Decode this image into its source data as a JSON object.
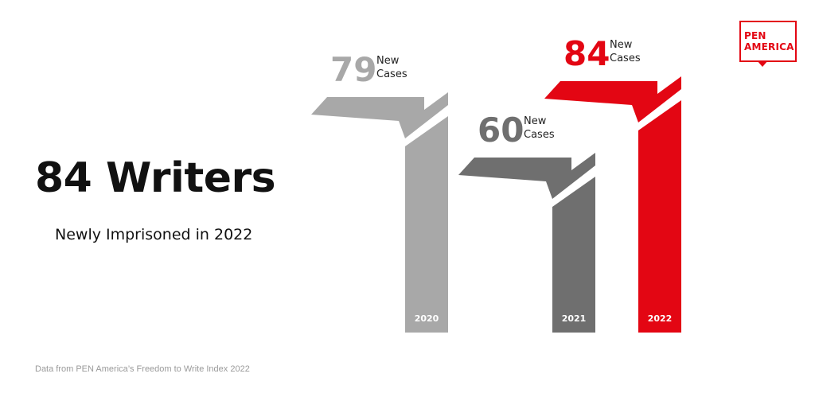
{
  "headline": "84 Writers",
  "subheadline": "Newly Imprisoned in 2022",
  "source": "Data from PEN America’s Freedom to Write Index 2022",
  "logo": {
    "line1": "PEN",
    "line2": "AMERICA",
    "icon": "speech-bubble-icon",
    "color": "#e30613"
  },
  "chart_data": {
    "type": "bar",
    "categories": [
      "2020",
      "2021",
      "2022"
    ],
    "values": [
      79,
      60,
      84
    ],
    "value_caption": [
      "New",
      "Cases"
    ],
    "colors": [
      "#a8a8a8",
      "#6f6f6f",
      "#e30613"
    ],
    "title": "",
    "xlabel": "",
    "ylabel": ""
  }
}
